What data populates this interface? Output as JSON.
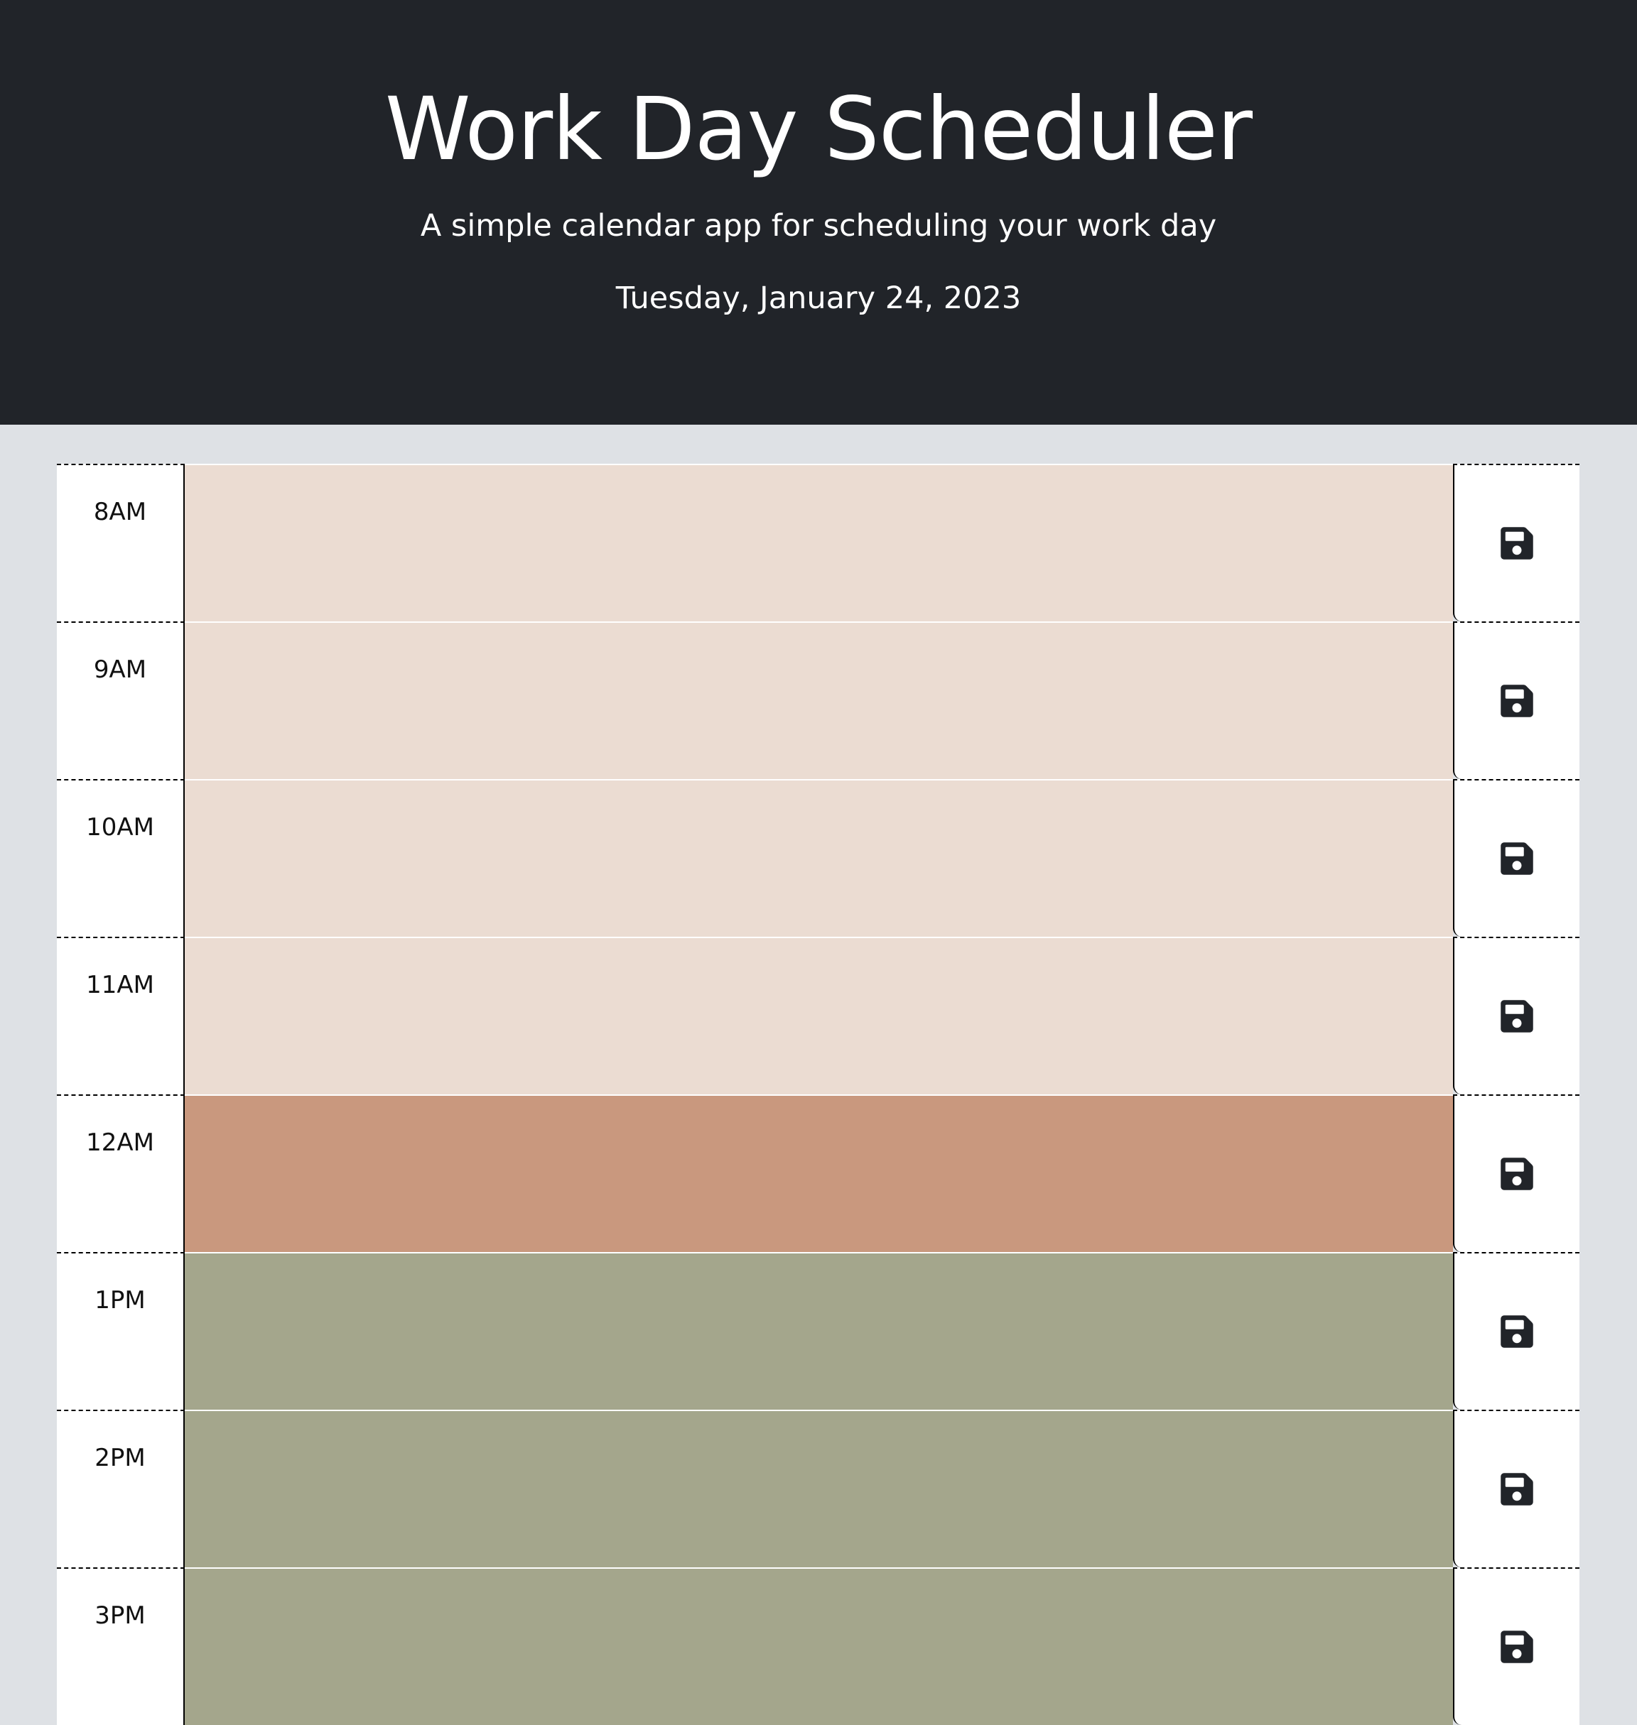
{
  "header": {
    "title": "Work Day Scheduler",
    "subtitle": "A simple calendar app for scheduling your work day",
    "current_day": "Tuesday, January 24, 2023"
  },
  "colors": {
    "past": "#ebdcd2",
    "present": "#c9987e",
    "future": "#a4a68c",
    "header_bg": "#212429",
    "page_bg": "#dee1e5"
  },
  "time_blocks": [
    {
      "hour": "8AM",
      "state": "past",
      "text": "",
      "save_icon": "floppy-disk-icon"
    },
    {
      "hour": "9AM",
      "state": "past",
      "text": "",
      "save_icon": "floppy-disk-icon"
    },
    {
      "hour": "10AM",
      "state": "past",
      "text": "",
      "save_icon": "floppy-disk-icon"
    },
    {
      "hour": "11AM",
      "state": "past",
      "text": "",
      "save_icon": "floppy-disk-icon"
    },
    {
      "hour": "12AM",
      "state": "present",
      "text": "",
      "save_icon": "floppy-disk-icon"
    },
    {
      "hour": "1PM",
      "state": "future",
      "text": "",
      "save_icon": "floppy-disk-icon"
    },
    {
      "hour": "2PM",
      "state": "future",
      "text": "",
      "save_icon": "floppy-disk-icon"
    },
    {
      "hour": "3PM",
      "state": "future",
      "text": "",
      "save_icon": "floppy-disk-icon"
    }
  ]
}
